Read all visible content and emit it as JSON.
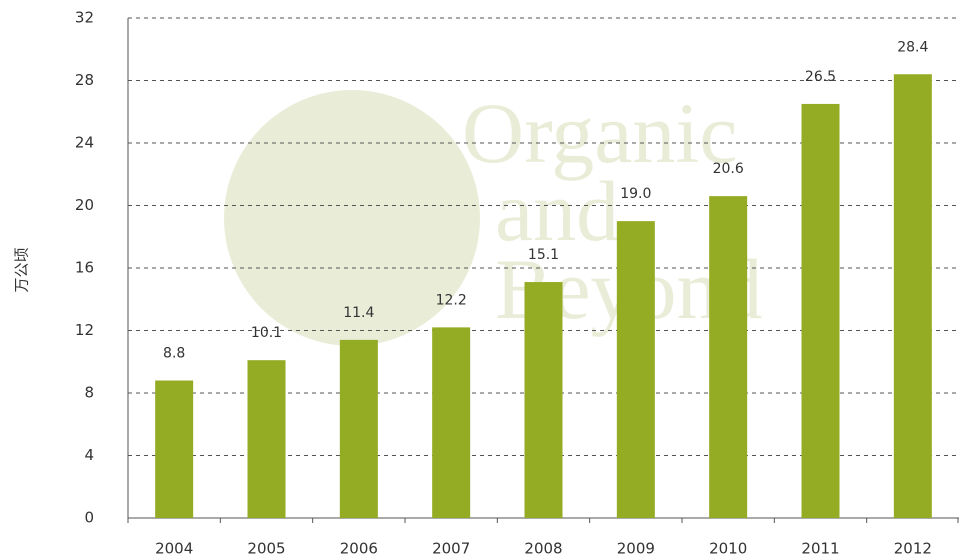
{
  "chart_data": {
    "type": "bar",
    "y_label": "万公顷",
    "categories": [
      "2004",
      "2005",
      "2006",
      "2007",
      "2008",
      "2009",
      "2010",
      "2011",
      "2012"
    ],
    "values": [
      8.8,
      10.1,
      11.4,
      12.2,
      15.1,
      19.0,
      20.6,
      26.5,
      28.4
    ],
    "value_labels": [
      "8.8",
      "10.1",
      "11.4",
      "12.2",
      "15.1",
      "19.0",
      "20.6",
      "26.5",
      "28.4"
    ],
    "color": "#94ab24",
    "ylim": [
      0,
      32
    ],
    "yticks": [
      0,
      4,
      8,
      12,
      16,
      20,
      24,
      28,
      32
    ],
    "grid": true,
    "annotations": [
      "Organic",
      "and",
      "Beyond"
    ]
  }
}
